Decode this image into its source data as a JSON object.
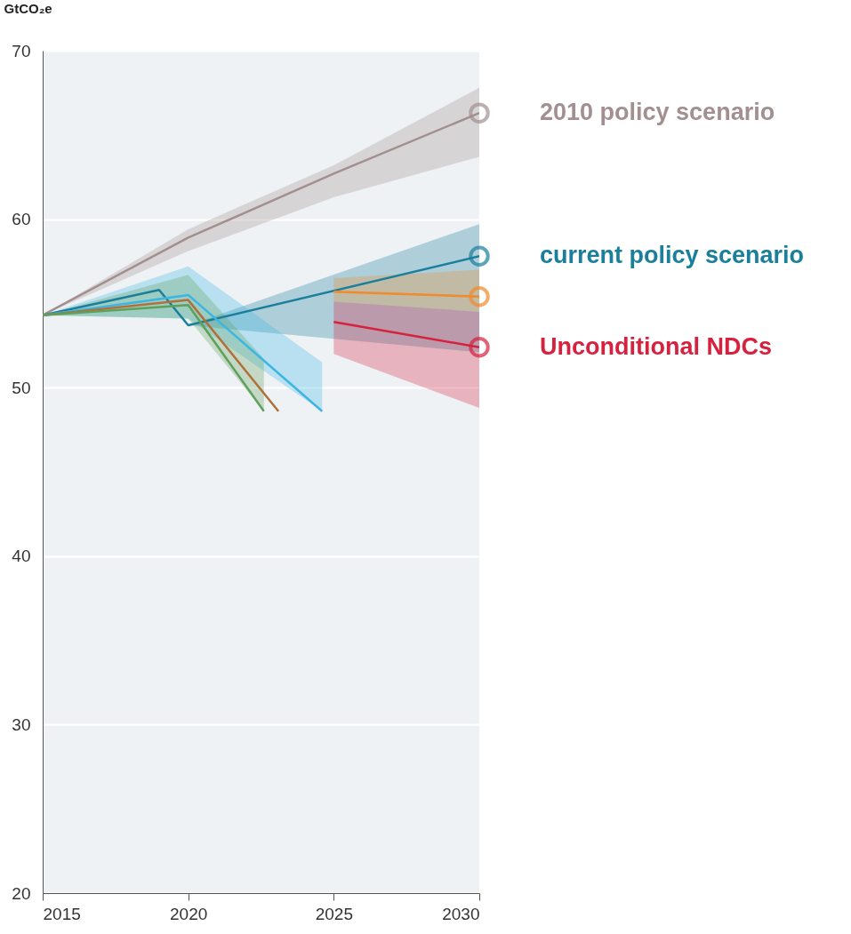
{
  "chart_data": {
    "type": "line",
    "ylabel": "GtCO₂e",
    "xlim": [
      2015,
      2030
    ],
    "xticks": [
      2015,
      2020,
      2025,
      2030
    ],
    "ylim": [
      20,
      70
    ],
    "yticks": [
      20,
      30,
      40,
      50,
      60,
      70
    ],
    "grid": "y",
    "legend": false,
    "series": [
      {
        "name": "2010 policy scenario",
        "color": "#a38f8f",
        "x": [
          2015,
          2020,
          2025,
          2030
        ],
        "values": [
          54.3,
          58.9,
          62.7,
          66.3
        ],
        "lower": [
          54.3,
          58.1,
          61.3,
          63.7
        ],
        "upper": [
          54.3,
          59.4,
          63.2,
          67.8
        ]
      },
      {
        "name": "current policy scenario",
        "color": "#1a7f9c",
        "x": [
          2015,
          2019,
          2020,
          2030
        ],
        "values": [
          54.3,
          55.8,
          53.7,
          57.8
        ],
        "lower": [
          null,
          null,
          53.7,
          52.1
        ],
        "upper": [
          null,
          null,
          53.7,
          59.7
        ]
      },
      {
        "color": "#f08a2c",
        "x": [
          2025,
          2030
        ],
        "values": [
          55.7,
          55.4
        ],
        "lower": [
          55.1,
          54.5
        ],
        "upper": [
          56.5,
          57.0
        ]
      },
      {
        "name": "Unconditional NDCs",
        "color": "#d6213f",
        "x": [
          2025,
          2030
        ],
        "values": [
          53.9,
          52.4
        ],
        "lower": [
          52.0,
          48.8
        ],
        "upper": [
          55.1,
          54.5
        ]
      },
      {
        "color": "#3bb6e3",
        "x": [
          2015,
          2020,
          2024.6
        ],
        "values": [
          54.3,
          55.5,
          48.6
        ],
        "lower": [
          54.3,
          54.1,
          48.6
        ],
        "upper": [
          54.3,
          57.2,
          51.5
        ]
      },
      {
        "color": "#b0703c",
        "x": [
          2015,
          2020,
          2023.1
        ],
        "values": [
          54.3,
          55.2,
          48.6
        ]
      },
      {
        "color": "#5fa05a",
        "x": [
          2015,
          2020,
          2022.6
        ],
        "values": [
          54.3,
          54.9,
          48.6
        ],
        "lower": [
          54.3,
          54.1,
          48.6
        ],
        "upper": [
          54.3,
          56.7,
          51.7
        ]
      },
      {
        "type": "scatter",
        "marker": "circle",
        "color": "#a38f8f",
        "x": [
          2030
        ],
        "values": [
          66.3
        ]
      },
      {
        "type": "scatter",
        "marker": "circle",
        "color": "#1a7f9c",
        "x": [
          2030
        ],
        "values": [
          57.8
        ]
      },
      {
        "type": "scatter",
        "marker": "circle",
        "color": "#f08a2c",
        "x": [
          2030
        ],
        "values": [
          55.4
        ]
      },
      {
        "type": "scatter",
        "marker": "circle",
        "color": "#d6213f",
        "x": [
          2030
        ],
        "values": [
          52.4
        ]
      }
    ]
  }
}
